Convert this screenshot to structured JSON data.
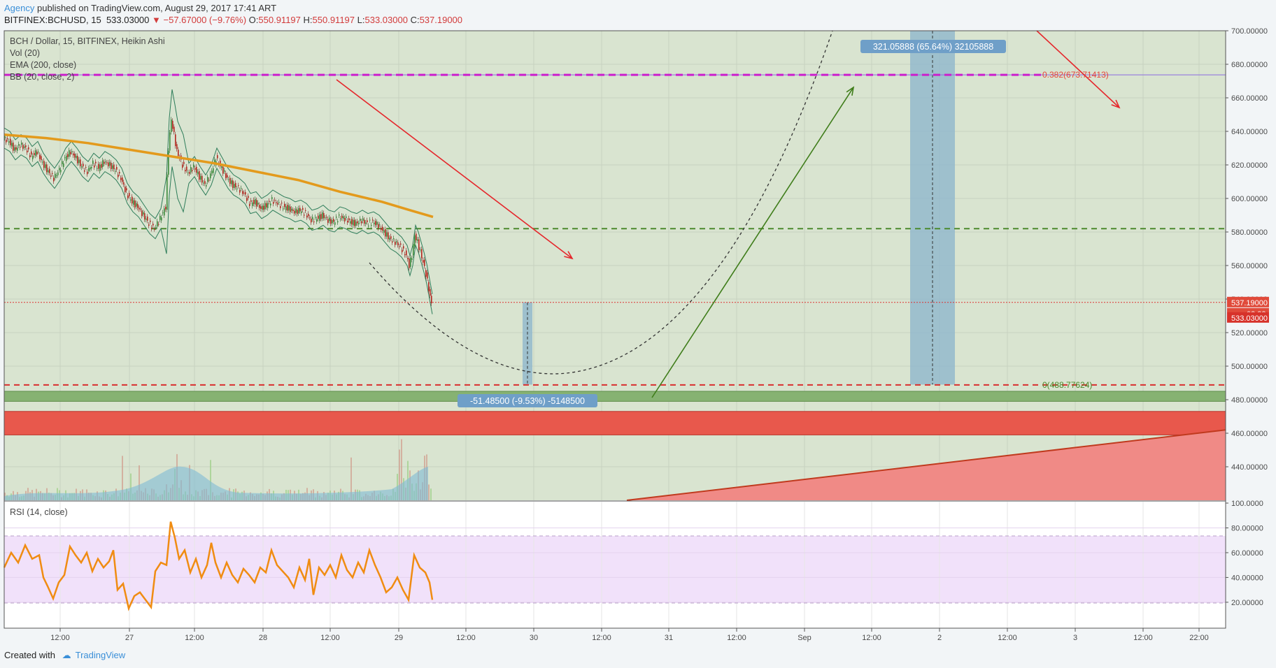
{
  "header": {
    "brand": "Agency",
    "published": " published on TradingView.com, August 29, 2017 17:41 ART",
    "symbol": "BITFINEX:BCHUSD, 15",
    "last": "533.03000",
    "change": "▼ −57.67000 (−9.76%)",
    "open_label": "O:",
    "open": "550.91197",
    "high_label": "H:",
    "high": "550.91197",
    "low_label": "L:",
    "low": "533.03000",
    "close_label": "C:",
    "close": "537.19000"
  },
  "legend": {
    "title": "BCH / Dollar, 15, BITFINEX, Heikin Ashi",
    "vol": "Vol (20)",
    "ema": "EMA (200, close)",
    "bb": "BB (20, close, 2)",
    "rsi": "RSI (14, close)"
  },
  "footer": {
    "created": "Created with",
    "brand": "TradingView"
  },
  "colors": {
    "bg": "#d9e4d0",
    "rsi_band": "#f1e1fa",
    "green_zone": "#86b272",
    "red_zone": "#e8584c",
    "ema": "#e39a1c",
    "rsi": "#f08c12",
    "arrow_red": "#e5262b",
    "arrow_green": "#3f7d1a",
    "magenta": "#cc1fcc",
    "dash_green": "#4c8a2e",
    "dash_red": "#d92e2e",
    "measure": "#8fb6cc"
  },
  "chart_data": {
    "type": "candlestick",
    "price_axis": {
      "ylim": [
        420,
        700
      ],
      "ticks": [
        "700.00000",
        "680.00000",
        "660.00000",
        "640.00000",
        "620.00000",
        "600.00000",
        "580.00000",
        "560.00000",
        "540.00000",
        "520.00000",
        "500.00000",
        "480.00000",
        "460.00000",
        "440.00000"
      ]
    },
    "rsi_axis": {
      "ylim": [
        0,
        100
      ],
      "ticks": [
        "100.0000",
        "80.00000",
        "60.00000",
        "40.00000",
        "20.00000"
      ]
    },
    "time_axis": [
      "12:00",
      "27",
      "12:00",
      "28",
      "12:00",
      "29",
      "12:00",
      "30",
      "12:00",
      "31",
      "12:00",
      "Sep",
      "12:00",
      "2",
      "12:00",
      "3",
      "12:00",
      "22:00"
    ],
    "price_labels": {
      "last_close": "537.19000",
      "countdown": "03:32",
      "low": "533.03000"
    },
    "levels": [
      {
        "name": "fib-0.382",
        "price": 673.7,
        "label": "0.382(673.71413)"
      },
      {
        "name": "fib-0",
        "price": 488.78,
        "label": "0(488.77624)"
      },
      {
        "name": "support-green",
        "price": 582
      },
      {
        "name": "last-price",
        "price": 538
      }
    ],
    "zones": [
      {
        "name": "green-zone",
        "from": 479,
        "to": 485
      },
      {
        "name": "red-zone",
        "from": 459,
        "to": 473
      }
    ],
    "measurements": [
      {
        "name": "measure-down",
        "label": "-51.48500 (-9.53%) -5148500"
      },
      {
        "name": "measure-up",
        "label": "321.05888 (65.64%) 32105888"
      }
    ],
    "price_series": [
      [
        0,
        636
      ],
      [
        8,
        634
      ],
      [
        16,
        629
      ],
      [
        24,
        632
      ],
      [
        32,
        630
      ],
      [
        40,
        625
      ],
      [
        48,
        628
      ],
      [
        56,
        621
      ],
      [
        64,
        616
      ],
      [
        72,
        612
      ],
      [
        80,
        617
      ],
      [
        88,
        624
      ],
      [
        96,
        628
      ],
      [
        104,
        624
      ],
      [
        112,
        619
      ],
      [
        120,
        616
      ],
      [
        128,
        621
      ],
      [
        136,
        618
      ],
      [
        144,
        622
      ],
      [
        152,
        620
      ],
      [
        160,
        617
      ],
      [
        168,
        612
      ],
      [
        176,
        603
      ],
      [
        184,
        598
      ],
      [
        192,
        595
      ],
      [
        200,
        590
      ],
      [
        208,
        585
      ],
      [
        216,
        582
      ],
      [
        224,
        588
      ],
      [
        232,
        595
      ],
      [
        236,
        630
      ],
      [
        240,
        647
      ],
      [
        244,
        638
      ],
      [
        248,
        628
      ],
      [
        256,
        620
      ],
      [
        264,
        615
      ],
      [
        272,
        619
      ],
      [
        280,
        613
      ],
      [
        288,
        608
      ],
      [
        296,
        614
      ],
      [
        304,
        624
      ],
      [
        312,
        618
      ],
      [
        320,
        612
      ],
      [
        328,
        608
      ],
      [
        336,
        606
      ],
      [
        344,
        603
      ],
      [
        352,
        597
      ],
      [
        360,
        598
      ],
      [
        368,
        594
      ],
      [
        376,
        596
      ],
      [
        384,
        599
      ],
      [
        392,
        597
      ],
      [
        400,
        595
      ],
      [
        408,
        594
      ],
      [
        416,
        592
      ],
      [
        424,
        593
      ],
      [
        432,
        591
      ],
      [
        440,
        587
      ],
      [
        448,
        588
      ],
      [
        456,
        590
      ],
      [
        464,
        587
      ],
      [
        472,
        586
      ],
      [
        480,
        589
      ],
      [
        488,
        588
      ],
      [
        496,
        586
      ],
      [
        504,
        585
      ],
      [
        512,
        587
      ],
      [
        520,
        585
      ],
      [
        528,
        586
      ],
      [
        536,
        584
      ],
      [
        544,
        580
      ],
      [
        552,
        576
      ],
      [
        560,
        574
      ],
      [
        568,
        571
      ],
      [
        576,
        566
      ],
      [
        580,
        560
      ],
      [
        584,
        566
      ],
      [
        588,
        578
      ],
      [
        592,
        574
      ],
      [
        596,
        568
      ],
      [
        600,
        562
      ],
      [
        604,
        555
      ],
      [
        608,
        546
      ],
      [
        612,
        537
      ]
    ],
    "ema_series": [
      [
        0,
        638
      ],
      [
        60,
        636
      ],
      [
        120,
        633
      ],
      [
        180,
        629
      ],
      [
        240,
        625
      ],
      [
        300,
        621
      ],
      [
        360,
        616
      ],
      [
        420,
        611
      ],
      [
        480,
        604
      ],
      [
        540,
        598
      ],
      [
        580,
        593
      ],
      [
        613,
        589
      ]
    ],
    "rsi_series": [
      [
        0,
        48
      ],
      [
        10,
        60
      ],
      [
        20,
        52
      ],
      [
        30,
        66
      ],
      [
        40,
        55
      ],
      [
        50,
        58
      ],
      [
        56,
        40
      ],
      [
        62,
        33
      ],
      [
        70,
        23
      ],
      [
        78,
        36
      ],
      [
        86,
        42
      ],
      [
        94,
        65
      ],
      [
        102,
        58
      ],
      [
        110,
        52
      ],
      [
        118,
        60
      ],
      [
        126,
        45
      ],
      [
        134,
        55
      ],
      [
        142,
        48
      ],
      [
        150,
        53
      ],
      [
        156,
        62
      ],
      [
        162,
        30
      ],
      [
        170,
        35
      ],
      [
        178,
        15
      ],
      [
        186,
        25
      ],
      [
        194,
        28
      ],
      [
        202,
        22
      ],
      [
        210,
        16
      ],
      [
        216,
        45
      ],
      [
        224,
        52
      ],
      [
        232,
        50
      ],
      [
        238,
        85
      ],
      [
        244,
        72
      ],
      [
        250,
        55
      ],
      [
        258,
        62
      ],
      [
        266,
        44
      ],
      [
        274,
        55
      ],
      [
        282,
        40
      ],
      [
        290,
        50
      ],
      [
        296,
        68
      ],
      [
        302,
        52
      ],
      [
        310,
        40
      ],
      [
        318,
        52
      ],
      [
        326,
        42
      ],
      [
        334,
        36
      ],
      [
        342,
        47
      ],
      [
        350,
        42
      ],
      [
        358,
        36
      ],
      [
        366,
        48
      ],
      [
        374,
        44
      ],
      [
        382,
        62
      ],
      [
        390,
        50
      ],
      [
        398,
        45
      ],
      [
        406,
        40
      ],
      [
        414,
        32
      ],
      [
        422,
        48
      ],
      [
        430,
        38
      ],
      [
        436,
        55
      ],
      [
        442,
        26
      ],
      [
        450,
        48
      ],
      [
        458,
        42
      ],
      [
        466,
        50
      ],
      [
        474,
        40
      ],
      [
        482,
        58
      ],
      [
        490,
        46
      ],
      [
        498,
        40
      ],
      [
        506,
        52
      ],
      [
        514,
        44
      ],
      [
        522,
        62
      ],
      [
        530,
        50
      ],
      [
        538,
        40
      ],
      [
        546,
        28
      ],
      [
        554,
        32
      ],
      [
        562,
        40
      ],
      [
        570,
        30
      ],
      [
        578,
        22
      ],
      [
        586,
        58
      ],
      [
        594,
        48
      ],
      [
        602,
        44
      ],
      [
        608,
        36
      ],
      [
        612,
        22
      ]
    ]
  }
}
